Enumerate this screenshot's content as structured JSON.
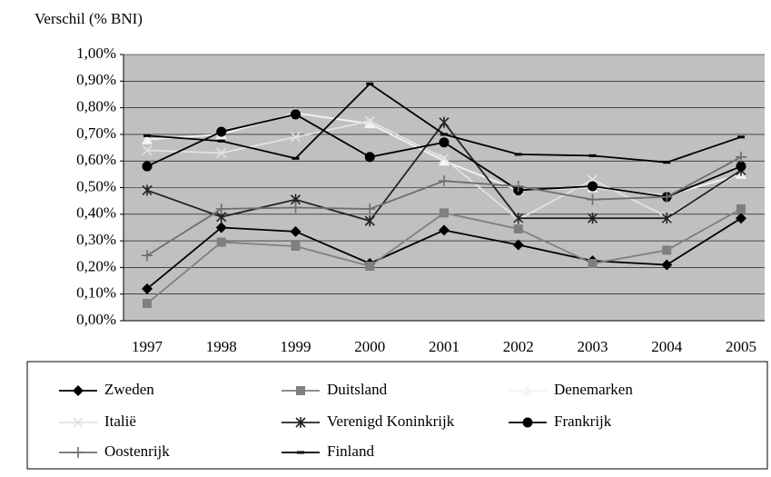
{
  "chart_data": {
    "type": "line",
    "y_axis_label": "Verschil (% BNI)",
    "categories": [
      "1997",
      "1998",
      "1999",
      "2000",
      "2001",
      "2002",
      "2003",
      "2004",
      "2005"
    ],
    "ylim": [
      0,
      1
    ],
    "yticks": [
      {
        "value": 0,
        "label": "0,00%"
      },
      {
        "value": 0.1,
        "label": "0,10%"
      },
      {
        "value": 0.2,
        "label": "0,20%"
      },
      {
        "value": 0.3,
        "label": "0,30%"
      },
      {
        "value": 0.4,
        "label": "0,40%"
      },
      {
        "value": 0.5,
        "label": "0,50%"
      },
      {
        "value": 0.6,
        "label": "0,60%"
      },
      {
        "value": 0.7,
        "label": "0,70%"
      },
      {
        "value": 0.8,
        "label": "0,80%"
      },
      {
        "value": 0.9,
        "label": "0,90%"
      },
      {
        "value": 1,
        "label": "1,00%"
      }
    ],
    "grid": true,
    "plot_background": "#c0c0c0",
    "legend_position": "bottom",
    "series": [
      {
        "name": "Zweden",
        "color": "#000000",
        "marker": "diamond",
        "values": [
          0.12,
          0.35,
          0.335,
          0.215,
          0.34,
          0.285,
          0.225,
          0.21,
          0.385
        ]
      },
      {
        "name": "Duitsland",
        "color": "#7f7f7f",
        "marker": "square",
        "values": [
          0.065,
          0.295,
          0.28,
          0.205,
          0.405,
          0.345,
          0.215,
          0.265,
          0.42
        ]
      },
      {
        "name": "Denemarken",
        "color": "#f4f4f4",
        "marker": "triangle",
        "values": [
          0.68,
          0.7,
          0.78,
          0.74,
          0.6,
          0.49,
          0.5,
          0.47,
          0.55
        ]
      },
      {
        "name": "Italië",
        "color": "#e2e2e2",
        "marker": "x",
        "values": [
          0.64,
          0.63,
          0.69,
          0.75,
          0.61,
          0.38,
          0.53,
          0.39,
          0.56
        ]
      },
      {
        "name": "Verenigd Koninkrijk",
        "color": "#222222",
        "marker": "star",
        "values": [
          0.49,
          0.39,
          0.455,
          0.375,
          0.745,
          0.385,
          0.385,
          0.385,
          0.565
        ]
      },
      {
        "name": "Frankrijk",
        "color": "#000000",
        "marker": "circle",
        "values": [
          0.58,
          0.71,
          0.775,
          0.615,
          0.67,
          0.49,
          0.505,
          0.465,
          0.58
        ]
      },
      {
        "name": "Oostenrijk",
        "color": "#6e6e6e",
        "marker": "plus",
        "values": [
          0.245,
          0.42,
          0.425,
          0.42,
          0.525,
          0.505,
          0.455,
          0.465,
          0.615
        ]
      },
      {
        "name": "Finland",
        "color": "#000000",
        "marker": "dash",
        "values": [
          0.695,
          0.675,
          0.61,
          0.89,
          0.7,
          0.625,
          0.62,
          0.595,
          0.69
        ]
      }
    ]
  }
}
